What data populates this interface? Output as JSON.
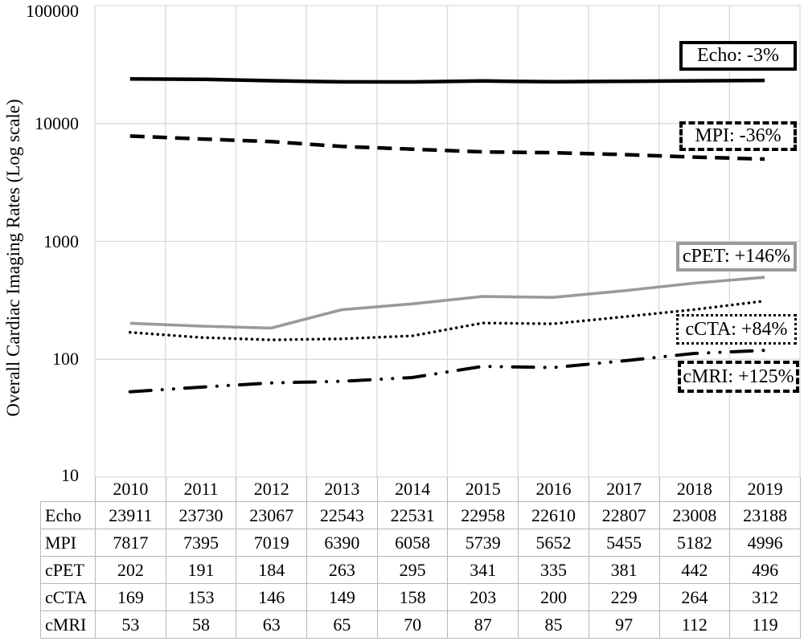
{
  "chart_data": {
    "type": "line",
    "title": "",
    "xlabel": "",
    "ylabel": "Overall Cardiac Imaging Rates (Log scale)",
    "y_scale": "log",
    "ylim": [
      10,
      100000
    ],
    "y_ticks": [
      "100000",
      "10000",
      "1000",
      "100",
      "10"
    ],
    "grid": true,
    "legend_position": "right-inside-plot-boxed",
    "categories": [
      "2010",
      "2011",
      "2012",
      "2013",
      "2014",
      "2015",
      "2016",
      "2017",
      "2018",
      "2019"
    ],
    "series": [
      {
        "name": "Echo",
        "values": [
          23911,
          23730,
          23067,
          22543,
          22531,
          22958,
          22610,
          22807,
          23008,
          23188
        ],
        "line_style": "solid",
        "color": "#000000",
        "annotation": "Echo: -3%"
      },
      {
        "name": "MPI",
        "values": [
          7817,
          7395,
          7019,
          6390,
          6058,
          5739,
          5652,
          5455,
          5182,
          4996
        ],
        "line_style": "dashed",
        "color": "#000000",
        "annotation": "MPI: -36%"
      },
      {
        "name": "cPET",
        "values": [
          202,
          191,
          184,
          263,
          295,
          341,
          335,
          381,
          442,
          496
        ],
        "line_style": "solid",
        "color": "#9a9a9a",
        "annotation": "cPET: +146%"
      },
      {
        "name": "cCTA",
        "values": [
          169,
          153,
          146,
          149,
          158,
          203,
          200,
          229,
          264,
          312
        ],
        "line_style": "dotted",
        "color": "#000000",
        "annotation": "cCTA: +84%"
      },
      {
        "name": "cMRI",
        "values": [
          53,
          58,
          63,
          65,
          70,
          87,
          85,
          97,
          112,
          119
        ],
        "line_style": "dash-dot-dot",
        "color": "#000000",
        "annotation": "cMRI: +125%"
      }
    ],
    "grid_color": "#d9d9d9",
    "table_border_color": "#b8b8b8"
  }
}
